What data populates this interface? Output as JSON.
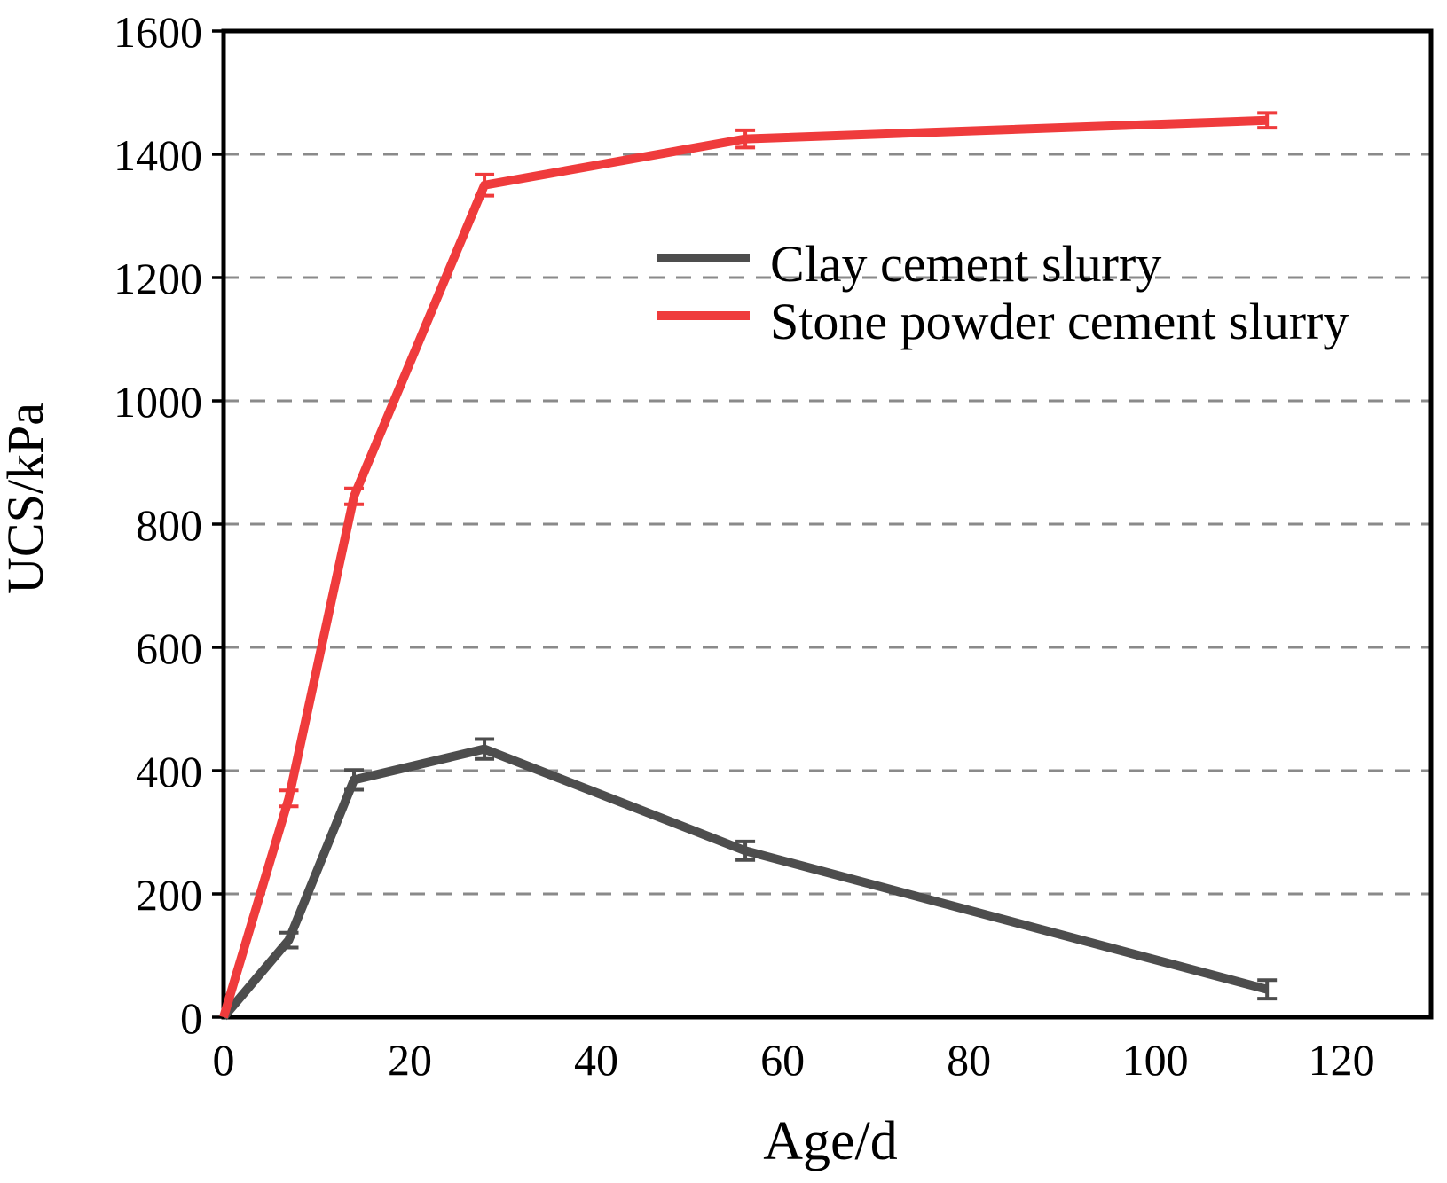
{
  "figure": {
    "background": "#ffffff",
    "frame_color": "#000000"
  },
  "chart_data": {
    "type": "line",
    "title": "",
    "xlabel": "Age/d",
    "ylabel": "UCS/kPa",
    "xlim": [
      0,
      129.6
    ],
    "ylim": [
      0,
      1600
    ],
    "x_ticks": [
      0,
      20,
      40,
      60,
      80,
      100,
      120
    ],
    "y_ticks": [
      0,
      200,
      400,
      600,
      800,
      1000,
      1200,
      1400,
      1600
    ],
    "grid": {
      "horizontal": true,
      "vertical": false,
      "style": "dashed",
      "color": "#8a8a8a"
    },
    "legend": {
      "position": "inside, upper middle",
      "entries": [
        "Clay cement slurry",
        "Stone powder cement slurry"
      ]
    },
    "series": [
      {
        "name": "Clay cement slurry",
        "color": "#4d4d4d",
        "x": [
          0,
          7,
          14,
          28,
          56,
          112
        ],
        "y": [
          0,
          125,
          385,
          435,
          270,
          45
        ],
        "y_err": [
          0,
          12,
          16,
          16,
          15,
          15
        ]
      },
      {
        "name": "Stone powder cement slurry",
        "color": "#ef3b3c",
        "x": [
          0,
          7,
          14,
          28,
          56,
          112
        ],
        "y": [
          0,
          355,
          845,
          1350,
          1425,
          1455
        ],
        "y_err": [
          0,
          13,
          13,
          17,
          14,
          12
        ]
      }
    ]
  }
}
